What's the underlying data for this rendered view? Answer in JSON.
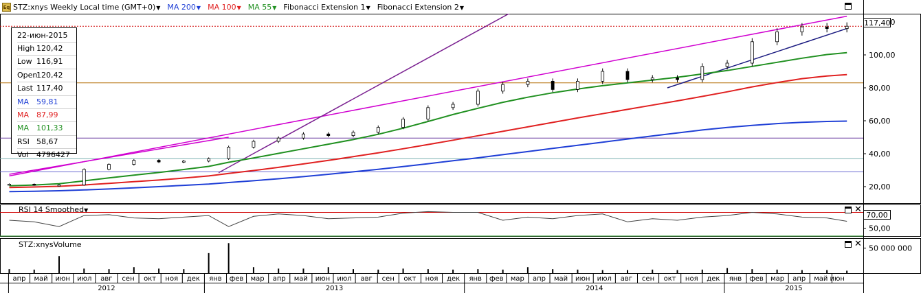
{
  "toolbar": {
    "icon_label": "Eq",
    "symbol_title": "STZ:xnys Weekly Local time (GMT+0)",
    "items": [
      {
        "label": "MA 200",
        "color": "#1f3fd6"
      },
      {
        "label": "MA 100",
        "color": "#e02020"
      },
      {
        "label": "MA 55",
        "color": "#209020"
      },
      {
        "label": "Fibonacci Extension 1",
        "color": "#000000"
      },
      {
        "label": "Fibonacci Extension 2",
        "color": "#000000"
      }
    ]
  },
  "infobox": {
    "date": "22-июн-2015",
    "rows": [
      {
        "label": "High",
        "value": "120,42",
        "color": "#000000"
      },
      {
        "label": "Low",
        "value": "116,91",
        "color": "#000000"
      },
      {
        "label": "Open",
        "value": "120,42",
        "color": "#000000"
      },
      {
        "label": "Last",
        "value": "117,40",
        "color": "#000000"
      },
      {
        "label": "MA",
        "value": "59,81",
        "color": "#1f3fd6"
      },
      {
        "label": "MA",
        "value": "87,99",
        "color": "#e02020"
      },
      {
        "label": "MA",
        "value": "101,33",
        "color": "#209020"
      },
      {
        "label": "RSI",
        "value": "58,67",
        "color": "#000000"
      },
      {
        "label": "Vol",
        "value": "4796427",
        "color": "#000000"
      }
    ]
  },
  "panes": {
    "rsi_title": "RSI 14 Smoothed",
    "volume_title": "STZ:xnysVolume"
  },
  "price_labels": {
    "last": "117,40",
    "rsi_level": "70,00"
  },
  "chart_data": [
    {
      "type": "line",
      "pane": "price",
      "title": "STZ:xnys Weekly Local time (GMT+0)",
      "ylim": [
        10,
        125
      ],
      "yticks": [
        "20,00",
        "40,00",
        "60,00",
        "80,00",
        "100,00",
        "120,00"
      ],
      "ytick_values": [
        20,
        40,
        60,
        80,
        100,
        120
      ],
      "x": [
        "2012-04-02",
        "2012-05-07",
        "2012-06-11",
        "2012-07-16",
        "2012-08-20",
        "2012-09-24",
        "2012-10-29",
        "2012-12-03",
        "2013-01-07",
        "2013-02-04",
        "2013-03-11",
        "2013-04-15",
        "2013-05-20",
        "2013-06-24",
        "2013-07-29",
        "2013-09-02",
        "2013-10-07",
        "2013-11-11",
        "2013-12-16",
        "2014-01-20",
        "2014-02-24",
        "2014-03-31",
        "2014-05-05",
        "2014-06-09",
        "2014-07-14",
        "2014-08-18",
        "2014-09-22",
        "2014-10-27",
        "2014-12-01",
        "2015-01-05",
        "2015-02-09",
        "2015-03-16",
        "2015-04-20",
        "2015-05-25",
        "2015-06-22"
      ],
      "series": [
        {
          "name": "STZ:xnys",
          "color": "#000000",
          "values": [
            21.5,
            21.0,
            21.0,
            30.5,
            33.5,
            36.0,
            35.0,
            35.5,
            37.0,
            44.0,
            47.5,
            49.5,
            52.0,
            51.0,
            53.0,
            56.0,
            61.0,
            68.0,
            70.0,
            78.0,
            82.0,
            84.0,
            79.0,
            84.0,
            90.0,
            85.0,
            86.0,
            85.0,
            93.0,
            95.0,
            108.0,
            114.0,
            117.0,
            116.0,
            117.4
          ]
        },
        {
          "name": "MA 200",
          "color": "#1f3fd6",
          "values": [
            17.0,
            17.2,
            17.5,
            18.0,
            18.6,
            19.3,
            20.0,
            20.8,
            21.6,
            22.5,
            23.6,
            24.8,
            26.1,
            27.5,
            29.0,
            30.5,
            32.2,
            33.9,
            35.7,
            37.5,
            39.4,
            41.3,
            43.2,
            45.1,
            47.0,
            48.9,
            50.8,
            52.6,
            54.4,
            55.9,
            57.2,
            58.3,
            59.1,
            59.6,
            59.81
          ]
        },
        {
          "name": "MA 100",
          "color": "#e02020",
          "values": [
            19.5,
            19.8,
            20.2,
            21.0,
            22.0,
            23.0,
            24.0,
            25.2,
            26.5,
            28.0,
            29.8,
            31.7,
            33.8,
            35.9,
            38.2,
            40.5,
            43.0,
            45.6,
            48.2,
            50.9,
            53.6,
            56.3,
            59.0,
            61.7,
            64.3,
            66.9,
            69.5,
            72.1,
            74.8,
            77.6,
            80.6,
            83.2,
            85.6,
            87.2,
            87.99
          ]
        },
        {
          "name": "MA 55",
          "color": "#209020",
          "values": [
            20.5,
            21.0,
            21.8,
            23.5,
            25.3,
            27.0,
            28.6,
            30.4,
            32.3,
            34.8,
            37.4,
            40.2,
            43.0,
            45.8,
            48.6,
            51.8,
            55.5,
            59.6,
            63.8,
            67.6,
            71.2,
            74.3,
            77.0,
            79.3,
            81.3,
            83.0,
            84.7,
            86.4,
            88.4,
            90.5,
            93.0,
            95.5,
            98.0,
            100.2,
            101.33
          ]
        }
      ],
      "horizontal_lines": [
        {
          "value": 117.4,
          "color": "#d00000",
          "style": "dotted"
        },
        {
          "value": 83.0,
          "color": "#b36b00",
          "style": "solid"
        },
        {
          "value": 49.5,
          "color": "#6a3aa0",
          "style": "solid"
        },
        {
          "value": 37.0,
          "color": "#7ab0b0",
          "style": "solid"
        },
        {
          "value": 29.0,
          "color": "#6a6ad0",
          "style": "solid"
        }
      ],
      "trendlines": [
        {
          "color": "#d000d0",
          "from": {
            "x": "2012-04-02",
            "y": 26.5
          },
          "to": {
            "x": "2015-06-22",
            "y": 123.5
          }
        },
        {
          "color": "#d000d0",
          "from": {
            "x": "2012-04-02",
            "y": 27.5
          },
          "to": {
            "x": "2013-02-04",
            "y": 50.0
          }
        },
        {
          "color": "#7a2090",
          "from": {
            "x": "2013-01-21",
            "y": 28.5
          },
          "to": {
            "x": "2014-03-17",
            "y": 128.0
          }
        },
        {
          "color": "#1a1a80",
          "from": {
            "x": "2014-10-13",
            "y": 80.0
          },
          "to": {
            "x": "2015-06-22",
            "y": 116.0
          }
        }
      ]
    },
    {
      "type": "line",
      "pane": "rsi",
      "title": "RSI 14 Smoothed",
      "ylim": [
        40,
        80
      ],
      "yticks": [
        "50,00",
        "70,00"
      ],
      "ytick_values": [
        50,
        70
      ],
      "reference_lines": [
        {
          "value": 70,
          "color": "#d00000"
        },
        {
          "value": 40,
          "color": "#209020"
        }
      ],
      "x": [
        "2012-04-02",
        "2012-05-07",
        "2012-06-11",
        "2012-07-16",
        "2012-08-20",
        "2012-09-24",
        "2012-10-29",
        "2012-12-03",
        "2013-01-07",
        "2013-02-04",
        "2013-03-11",
        "2013-04-15",
        "2013-05-20",
        "2013-06-24",
        "2013-07-29",
        "2013-09-02",
        "2013-10-07",
        "2013-11-11",
        "2013-12-16",
        "2014-01-20",
        "2014-02-24",
        "2014-03-31",
        "2014-05-05",
        "2014-06-09",
        "2014-07-14",
        "2014-08-18",
        "2014-09-22",
        "2014-10-27",
        "2014-12-01",
        "2015-01-05",
        "2015-02-09",
        "2015-03-16",
        "2015-04-20",
        "2015-05-25",
        "2015-06-22"
      ],
      "series": [
        {
          "name": "RSI 14 Smoothed",
          "color": "#404040",
          "values": [
            60,
            58,
            52,
            66,
            67,
            63,
            62,
            64,
            66,
            52,
            65,
            68,
            66,
            62,
            63,
            64,
            69,
            71,
            70,
            70,
            60,
            64,
            62,
            66,
            68,
            58,
            62,
            60,
            64,
            66,
            70,
            68,
            64,
            63,
            58.67
          ]
        }
      ]
    },
    {
      "type": "bar",
      "pane": "volume",
      "title": "STZ:xnysVolume",
      "ylim": [
        0,
        70000000
      ],
      "yticks": [
        "50 000 000"
      ],
      "ytick_values": [
        50000000
      ],
      "x": [
        "2012-04-02",
        "2012-05-07",
        "2012-06-11",
        "2012-07-16",
        "2012-08-20",
        "2012-09-24",
        "2012-10-29",
        "2012-12-03",
        "2013-01-07",
        "2013-02-04",
        "2013-03-11",
        "2013-04-15",
        "2013-05-20",
        "2013-06-24",
        "2013-07-29",
        "2013-09-02",
        "2013-10-07",
        "2013-11-11",
        "2013-12-16",
        "2014-01-20",
        "2014-02-24",
        "2014-03-31",
        "2014-05-05",
        "2014-06-09",
        "2014-07-14",
        "2014-08-18",
        "2014-09-22",
        "2014-10-27",
        "2014-12-01",
        "2015-01-05",
        "2015-02-09",
        "2015-03-16",
        "2015-04-20",
        "2015-05-25",
        "2015-06-22"
      ],
      "values": [
        8000000,
        7000000,
        34000000,
        9000000,
        8000000,
        12000000,
        9000000,
        8000000,
        40000000,
        60000000,
        12000000,
        9000000,
        9000000,
        12000000,
        8000000,
        7000000,
        9000000,
        8000000,
        7000000,
        8000000,
        7000000,
        12000000,
        8000000,
        7000000,
        6000000,
        6000000,
        7000000,
        6000000,
        7000000,
        10000000,
        8000000,
        7000000,
        6000000,
        6000000,
        4796427
      ],
      "color": "#000000"
    }
  ],
  "x_axis": {
    "months": [
      {
        "label": "апр",
        "date": "2012-04-01"
      },
      {
        "label": "май",
        "date": "2012-05-01"
      },
      {
        "label": "июн",
        "date": "2012-06-01"
      },
      {
        "label": "июл",
        "date": "2012-07-01"
      },
      {
        "label": "авг",
        "date": "2012-08-01"
      },
      {
        "label": "сен",
        "date": "2012-09-01"
      },
      {
        "label": "окт",
        "date": "2012-10-01"
      },
      {
        "label": "ноя",
        "date": "2012-11-01"
      },
      {
        "label": "дек",
        "date": "2012-12-01"
      },
      {
        "label": "янв",
        "date": "2013-01-01"
      },
      {
        "label": "фев",
        "date": "2013-02-01"
      },
      {
        "label": "мар",
        "date": "2013-03-01"
      },
      {
        "label": "апр",
        "date": "2013-04-01"
      },
      {
        "label": "май",
        "date": "2013-05-01"
      },
      {
        "label": "июн",
        "date": "2013-06-01"
      },
      {
        "label": "июл",
        "date": "2013-07-01"
      },
      {
        "label": "авг",
        "date": "2013-08-01"
      },
      {
        "label": "сен",
        "date": "2013-09-01"
      },
      {
        "label": "окт",
        "date": "2013-10-01"
      },
      {
        "label": "ноя",
        "date": "2013-11-01"
      },
      {
        "label": "дек",
        "date": "2013-12-01"
      },
      {
        "label": "янв",
        "date": "2014-01-01"
      },
      {
        "label": "фев",
        "date": "2014-02-01"
      },
      {
        "label": "мар",
        "date": "2014-03-01"
      },
      {
        "label": "апр",
        "date": "2014-04-01"
      },
      {
        "label": "май",
        "date": "2014-05-01"
      },
      {
        "label": "июн",
        "date": "2014-06-01"
      },
      {
        "label": "июл",
        "date": "2014-07-01"
      },
      {
        "label": "авг",
        "date": "2014-08-01"
      },
      {
        "label": "сен",
        "date": "2014-09-01"
      },
      {
        "label": "окт",
        "date": "2014-10-01"
      },
      {
        "label": "ноя",
        "date": "2014-11-01"
      },
      {
        "label": "дек",
        "date": "2014-12-01"
      },
      {
        "label": "янв",
        "date": "2015-01-01"
      },
      {
        "label": "фев",
        "date": "2015-02-01"
      },
      {
        "label": "мар",
        "date": "2015-03-01"
      },
      {
        "label": "апр",
        "date": "2015-04-01"
      },
      {
        "label": "май",
        "date": "2015-05-01"
      },
      {
        "label": "июн",
        "date": "2015-06-01"
      }
    ],
    "years": [
      {
        "label": "2012",
        "date": "2012-04-01"
      },
      {
        "label": "2013",
        "date": "2013-01-01"
      },
      {
        "label": "2014",
        "date": "2014-01-01"
      },
      {
        "label": "2015",
        "date": "2015-01-01"
      }
    ],
    "range": [
      "2012-03-20",
      "2015-07-15"
    ]
  },
  "colors": {
    "grid": "#c8c8c8",
    "axis": "#000000"
  }
}
